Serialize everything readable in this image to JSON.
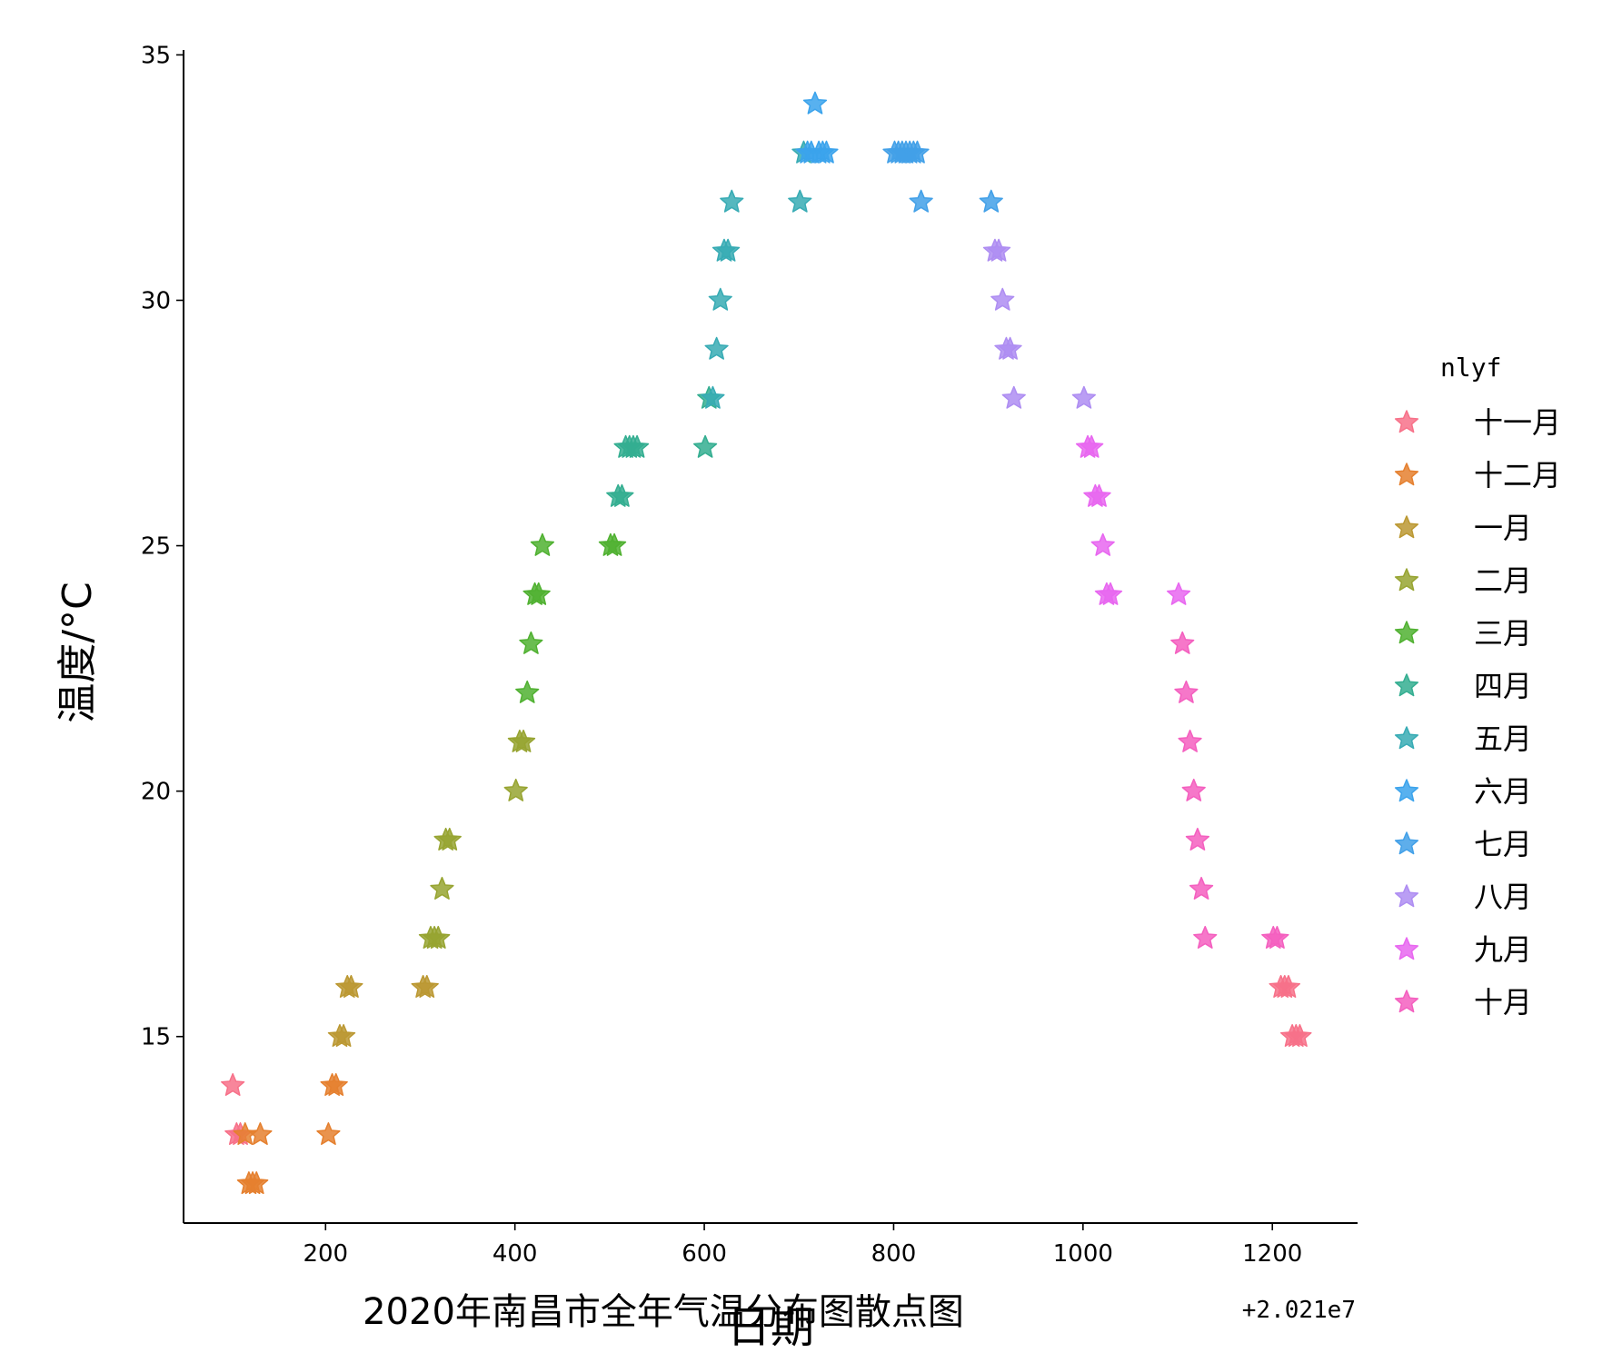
{
  "chart_data": {
    "type": "scatter",
    "title": "2020年南昌市全年气温分布图散点图",
    "xlabel": "日期",
    "ylabel": "温度/°C",
    "x_offset_label": "+2.021e7",
    "xlim": [
      50,
      1290
    ],
    "ylim": [
      11.2,
      35.1
    ],
    "xticks": [
      200,
      400,
      600,
      800,
      1000,
      1200
    ],
    "yticks": [
      15,
      20,
      25,
      30,
      35
    ],
    "grid": false,
    "marker": "star",
    "legend": {
      "title": "nlyf",
      "position": "right"
    },
    "series": [
      {
        "name": "十一月",
        "color": "#f77189",
        "points": [
          [
            102,
            14
          ],
          [
            106,
            13
          ],
          [
            110,
            13
          ],
          [
            1213,
            16
          ],
          [
            1217,
            16
          ],
          [
            1221,
            15
          ],
          [
            1225,
            15
          ],
          [
            1229,
            15
          ],
          [
            1209,
            16
          ]
        ]
      },
      {
        "name": "十二月",
        "color": "#e5802f",
        "points": [
          [
            115,
            13
          ],
          [
            119,
            12
          ],
          [
            123,
            12
          ],
          [
            127,
            12
          ],
          [
            131,
            13
          ],
          [
            203,
            13
          ],
          [
            207,
            14
          ],
          [
            211,
            14
          ]
        ]
      },
      {
        "name": "一月",
        "color": "#bb9832",
        "points": [
          [
            215,
            15
          ],
          [
            219,
            15
          ],
          [
            223,
            16
          ],
          [
            227,
            16
          ],
          [
            303,
            16
          ],
          [
            307,
            16
          ]
        ]
      },
      {
        "name": "二月",
        "color": "#97a431",
        "points": [
          [
            311,
            17
          ],
          [
            315,
            17
          ],
          [
            319,
            17
          ],
          [
            323,
            18
          ],
          [
            327,
            19
          ],
          [
            331,
            19
          ],
          [
            401,
            20
          ],
          [
            405,
            21
          ],
          [
            409,
            21
          ]
        ]
      },
      {
        "name": "三月",
        "color": "#50b131",
        "points": [
          [
            413,
            22
          ],
          [
            417,
            23
          ],
          [
            421,
            24
          ],
          [
            425,
            24
          ],
          [
            429,
            25
          ],
          [
            501,
            25
          ],
          [
            505,
            25
          ]
        ]
      },
      {
        "name": "四月",
        "color": "#34ae91",
        "points": [
          [
            509,
            26
          ],
          [
            513,
            26
          ],
          [
            517,
            27
          ],
          [
            521,
            27
          ],
          [
            525,
            27
          ],
          [
            529,
            27
          ],
          [
            601,
            27
          ],
          [
            605,
            28
          ]
        ]
      },
      {
        "name": "五月",
        "color": "#37abb4",
        "points": [
          [
            609,
            28
          ],
          [
            613,
            29
          ],
          [
            617,
            30
          ],
          [
            621,
            31
          ],
          [
            625,
            31
          ],
          [
            629,
            32
          ],
          [
            701,
            32
          ],
          [
            705,
            33
          ]
        ]
      },
      {
        "name": "六月",
        "color": "#3ba3ec",
        "points": [
          [
            709,
            33
          ],
          [
            713,
            33
          ],
          [
            717,
            34
          ],
          [
            721,
            33
          ],
          [
            725,
            33
          ],
          [
            729,
            33
          ]
        ]
      },
      {
        "name": "七月",
        "color": "#42a0e8",
        "points": [
          [
            801,
            33
          ],
          [
            805,
            33
          ],
          [
            809,
            33
          ],
          [
            813,
            33
          ],
          [
            817,
            33
          ],
          [
            821,
            33
          ],
          [
            825,
            33
          ],
          [
            829,
            32
          ],
          [
            903,
            32
          ]
        ]
      },
      {
        "name": "八月",
        "color": "#ae8df2",
        "points": [
          [
            907,
            31
          ],
          [
            911,
            31
          ],
          [
            915,
            30
          ],
          [
            919,
            29
          ],
          [
            923,
            29
          ],
          [
            927,
            28
          ],
          [
            1001,
            28
          ]
        ]
      },
      {
        "name": "九月",
        "color": "#e867f0",
        "points": [
          [
            1005,
            27
          ],
          [
            1009,
            27
          ],
          [
            1013,
            26
          ],
          [
            1017,
            26
          ],
          [
            1021,
            25
          ],
          [
            1025,
            24
          ],
          [
            1029,
            24
          ],
          [
            1101,
            24
          ]
        ]
      },
      {
        "name": "十月",
        "color": "#f45fbf",
        "points": [
          [
            1105,
            23
          ],
          [
            1109,
            22
          ],
          [
            1113,
            21
          ],
          [
            1117,
            20
          ],
          [
            1121,
            19
          ],
          [
            1125,
            18
          ],
          [
            1129,
            17
          ],
          [
            1201,
            17
          ],
          [
            1205,
            17
          ]
        ]
      }
    ]
  }
}
